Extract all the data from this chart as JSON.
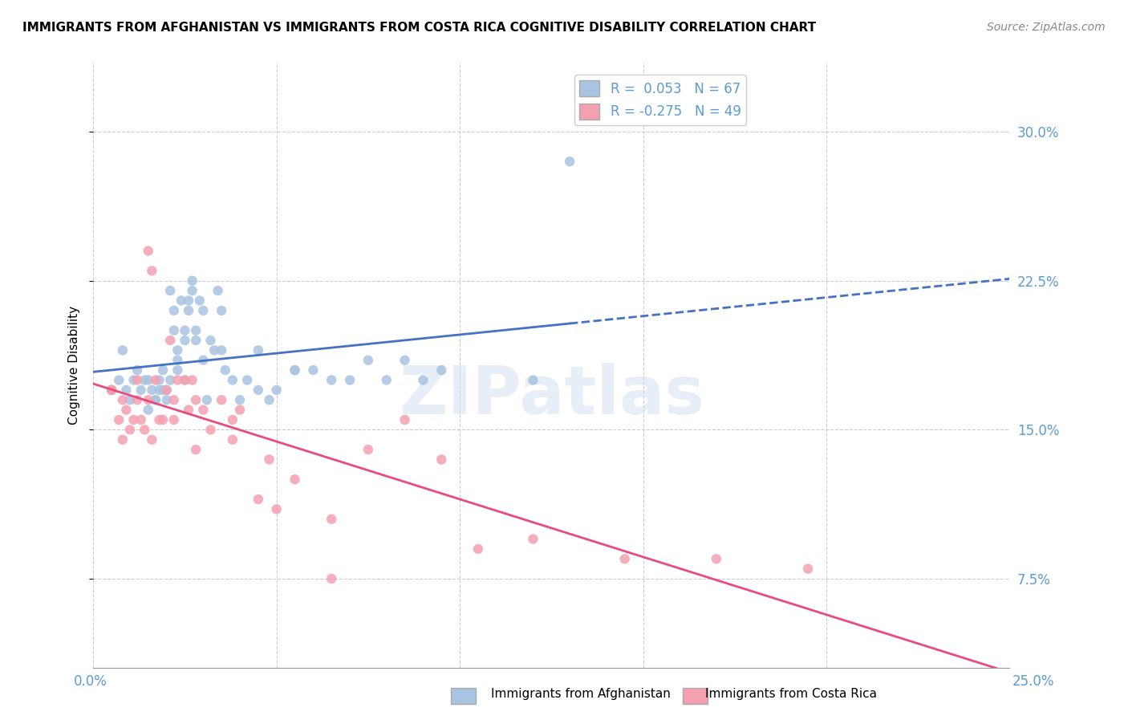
{
  "title": "IMMIGRANTS FROM AFGHANISTAN VS IMMIGRANTS FROM COSTA RICA COGNITIVE DISABILITY CORRELATION CHART",
  "source": "Source: ZipAtlas.com",
  "ylabel": "Cognitive Disability",
  "yticks": [
    "7.5%",
    "15.0%",
    "22.5%",
    "30.0%"
  ],
  "ytick_vals": [
    0.075,
    0.15,
    0.225,
    0.3
  ],
  "xlim": [
    0.0,
    0.25
  ],
  "ylim": [
    0.03,
    0.335
  ],
  "color_afghanistan": "#a8c4e0",
  "color_costa_rica": "#f4a0b0",
  "color_line_afghanistan": "#4472c4",
  "color_line_costa_rica": "#e84c7d",
  "watermark": "ZIPatlas",
  "afghanistan_x": [
    0.005,
    0.008,
    0.01,
    0.012,
    0.014,
    0.015,
    0.016,
    0.017,
    0.018,
    0.018,
    0.019,
    0.02,
    0.02,
    0.021,
    0.022,
    0.022,
    0.023,
    0.023,
    0.024,
    0.025,
    0.025,
    0.026,
    0.026,
    0.027,
    0.027,
    0.028,
    0.028,
    0.029,
    0.03,
    0.03,
    0.031,
    0.032,
    0.033,
    0.034,
    0.035,
    0.036,
    0.038,
    0.04,
    0.042,
    0.045,
    0.048,
    0.05,
    0.055,
    0.06,
    0.065,
    0.07,
    0.075,
    0.08,
    0.085,
    0.09,
    0.005,
    0.007,
    0.009,
    0.011,
    0.013,
    0.015,
    0.017,
    0.019,
    0.021,
    0.023,
    0.025,
    0.035,
    0.045,
    0.055,
    0.095,
    0.12,
    0.13
  ],
  "afghanistan_y": [
    0.17,
    0.19,
    0.165,
    0.18,
    0.175,
    0.16,
    0.17,
    0.165,
    0.17,
    0.175,
    0.18,
    0.17,
    0.165,
    0.22,
    0.2,
    0.21,
    0.185,
    0.19,
    0.215,
    0.2,
    0.195,
    0.215,
    0.21,
    0.22,
    0.225,
    0.195,
    0.2,
    0.215,
    0.185,
    0.21,
    0.165,
    0.195,
    0.19,
    0.22,
    0.21,
    0.18,
    0.175,
    0.165,
    0.175,
    0.19,
    0.165,
    0.17,
    0.18,
    0.18,
    0.175,
    0.175,
    0.185,
    0.175,
    0.185,
    0.175,
    0.17,
    0.175,
    0.17,
    0.175,
    0.17,
    0.175,
    0.165,
    0.17,
    0.175,
    0.18,
    0.175,
    0.19,
    0.17,
    0.18,
    0.18,
    0.175,
    0.285
  ],
  "costa_rica_x": [
    0.005,
    0.007,
    0.008,
    0.009,
    0.01,
    0.011,
    0.012,
    0.013,
    0.014,
    0.015,
    0.015,
    0.016,
    0.017,
    0.018,
    0.019,
    0.02,
    0.021,
    0.022,
    0.023,
    0.025,
    0.026,
    0.027,
    0.028,
    0.03,
    0.032,
    0.035,
    0.038,
    0.04,
    0.045,
    0.05,
    0.055,
    0.065,
    0.075,
    0.085,
    0.095,
    0.105,
    0.12,
    0.145,
    0.17,
    0.195,
    0.005,
    0.008,
    0.012,
    0.016,
    0.022,
    0.028,
    0.038,
    0.048,
    0.065
  ],
  "costa_rica_y": [
    0.17,
    0.155,
    0.145,
    0.16,
    0.15,
    0.155,
    0.165,
    0.155,
    0.15,
    0.165,
    0.24,
    0.23,
    0.175,
    0.155,
    0.155,
    0.17,
    0.195,
    0.165,
    0.175,
    0.175,
    0.16,
    0.175,
    0.165,
    0.16,
    0.15,
    0.165,
    0.155,
    0.16,
    0.115,
    0.11,
    0.125,
    0.105,
    0.14,
    0.155,
    0.135,
    0.09,
    0.095,
    0.085,
    0.085,
    0.08,
    0.17,
    0.165,
    0.175,
    0.145,
    0.155,
    0.14,
    0.145,
    0.135,
    0.075
  ]
}
